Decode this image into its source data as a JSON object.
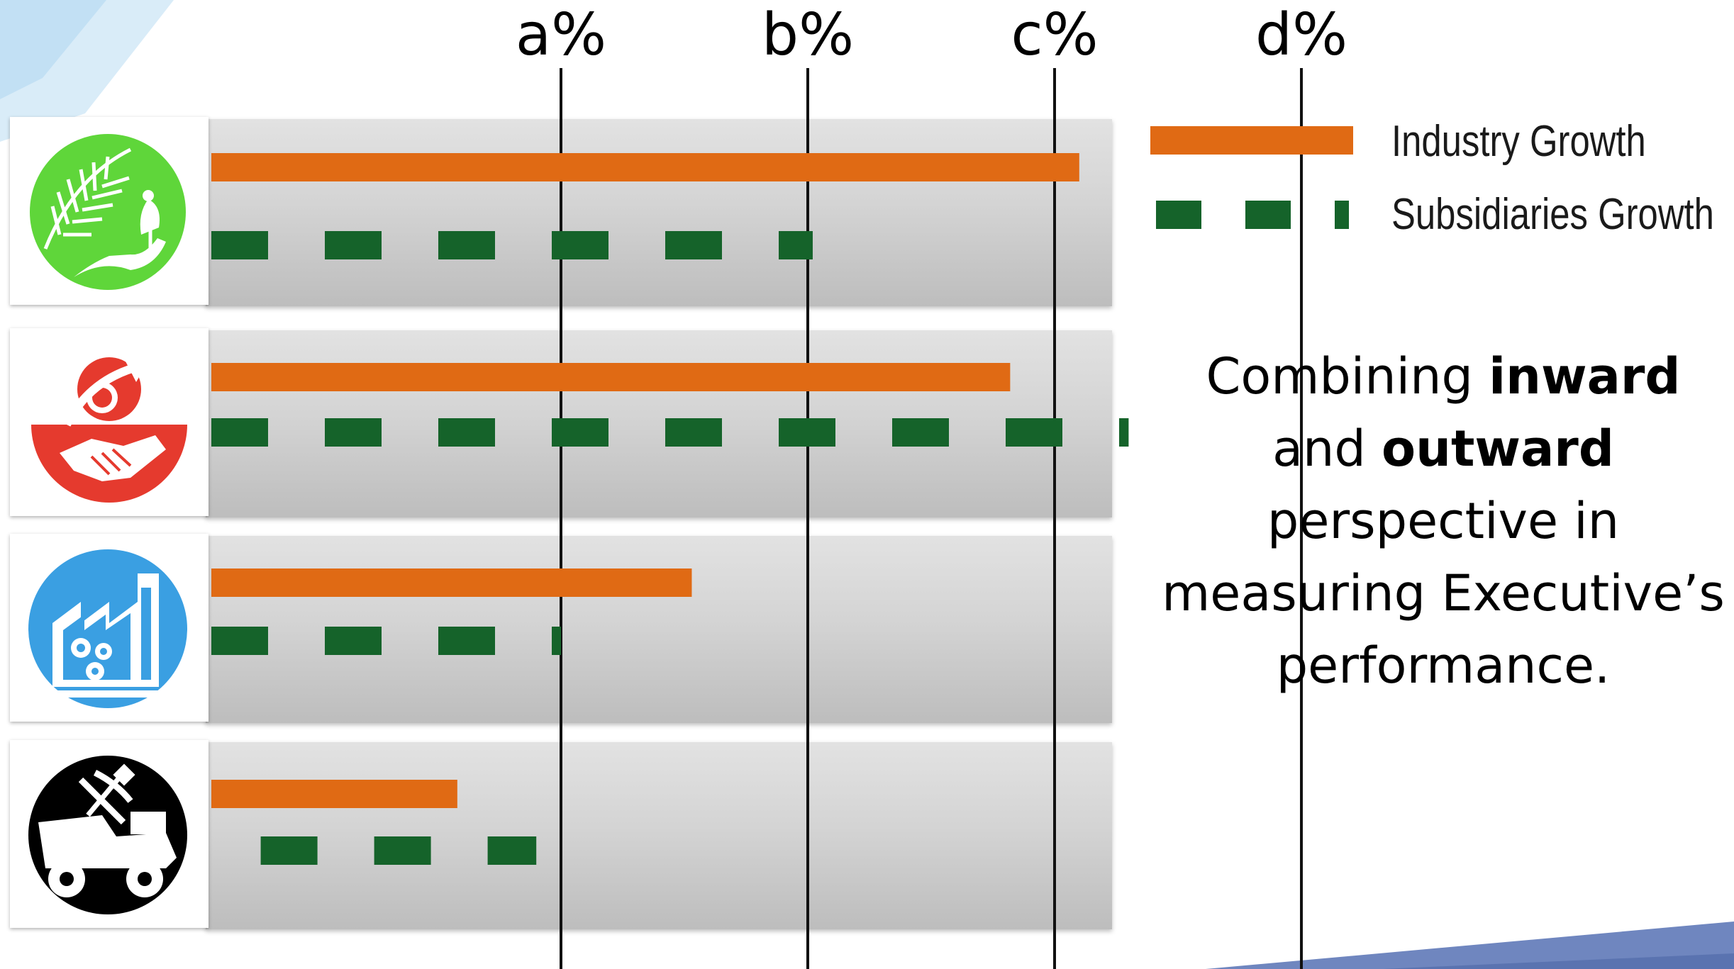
{
  "chart_data": {
    "type": "bar",
    "orientation": "horizontal",
    "categories": [
      "Agriculture",
      "Partnerships",
      "Industry",
      "Mining"
    ],
    "xticks": [
      {
        "label": "a%",
        "value": 1
      },
      {
        "label": "b%",
        "value": 2
      },
      {
        "label": "c%",
        "value": 3
      },
      {
        "label": "d%",
        "value": 4
      }
    ],
    "xlim": [
      -0.42,
      4.68
    ],
    "grid": "vertical lines at each tick",
    "legend_placement": "top-right",
    "series": [
      {
        "name": "Industry Growth",
        "style": "solid",
        "color": "#e06a14",
        "start": [
          0,
          0,
          0,
          0
        ],
        "values": [
          3.1,
          2.82,
          1.53,
          0.58
        ]
      },
      {
        "name": "Subsidiaries Growth",
        "style": "dashed",
        "color": "#15632a",
        "start": [
          0,
          0,
          0,
          0.2
        ],
        "values": [
          2.02,
          3.3,
          1.0,
          0.9
        ]
      }
    ]
  },
  "legend": {
    "industry": "Industry Growth",
    "subsidiaries": "Subsidiaries Growth"
  },
  "caption": {
    "p1": "Combining ",
    "b1": "inward",
    "p2": " and ",
    "b2": "outward",
    "p3": " perspective in measuring Executive’s performance."
  },
  "icons": [
    "palm-hand-plant-icon",
    "handshake-growth-icon",
    "factory-gears-icon",
    "mining-truck-pickaxe-icon"
  ],
  "colors": {
    "agri_icon": "#5fd63a",
    "partner_icon": "#e53a2e",
    "factory_icon": "#3a9fe2",
    "mining_icon": "#000000",
    "deco_blue": "#6f86bf",
    "deco_light": "#cfe6f6"
  }
}
